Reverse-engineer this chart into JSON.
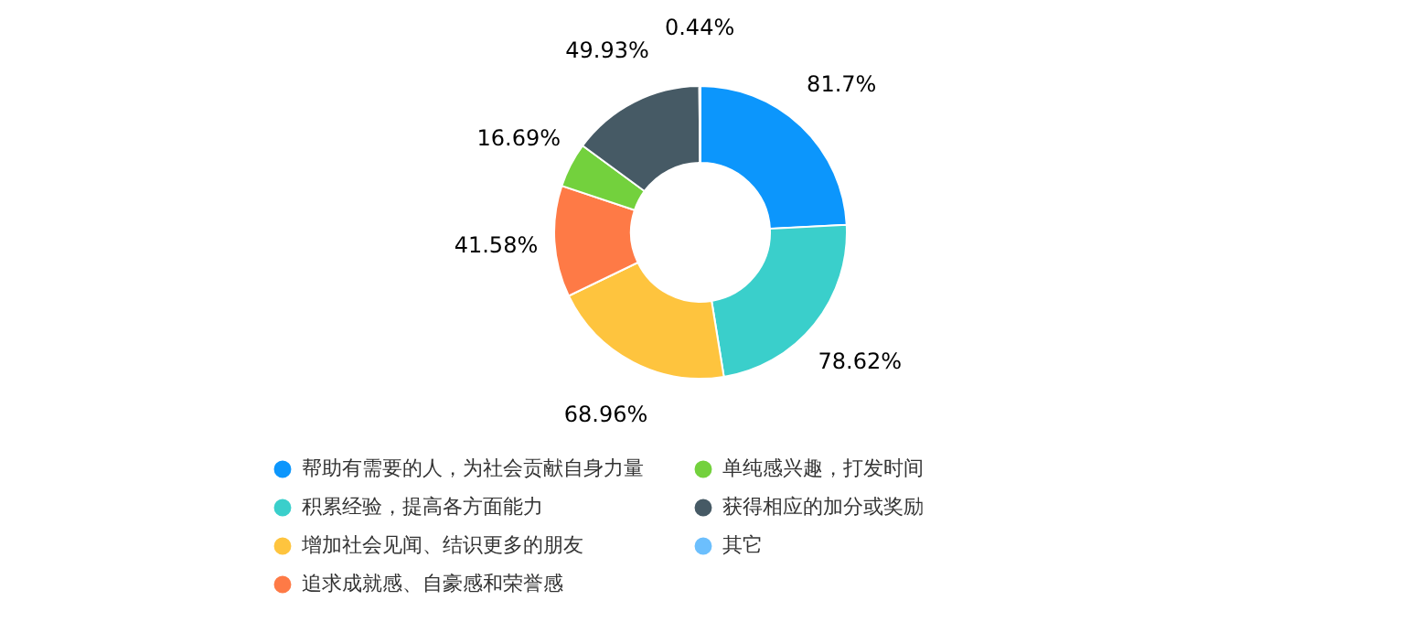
{
  "chart_data": {
    "type": "donut",
    "categories": [
      "帮助有需要的人，为社会贡献自身力量",
      "积累经验，提高各方面能力",
      "增加社会见闻、结识更多的朋友",
      "追求成就感、自豪感和荣誉感",
      "单纯感兴趣，打发时间",
      "获得相应的加分或奖励",
      "其它"
    ],
    "values": [
      81.7,
      78.62,
      68.96,
      41.58,
      16.69,
      49.93,
      0.44
    ],
    "value_labels": [
      "81.7%",
      "78.62%",
      "68.96%",
      "41.58%",
      "16.69%",
      "49.93%",
      "0.44%"
    ],
    "colors": [
      "#0c96fc",
      "#3acfcb",
      "#fec43e",
      "#fe7a46",
      "#73d13d",
      "#465a65",
      "#6cbffd"
    ],
    "legend": "bottom"
  }
}
